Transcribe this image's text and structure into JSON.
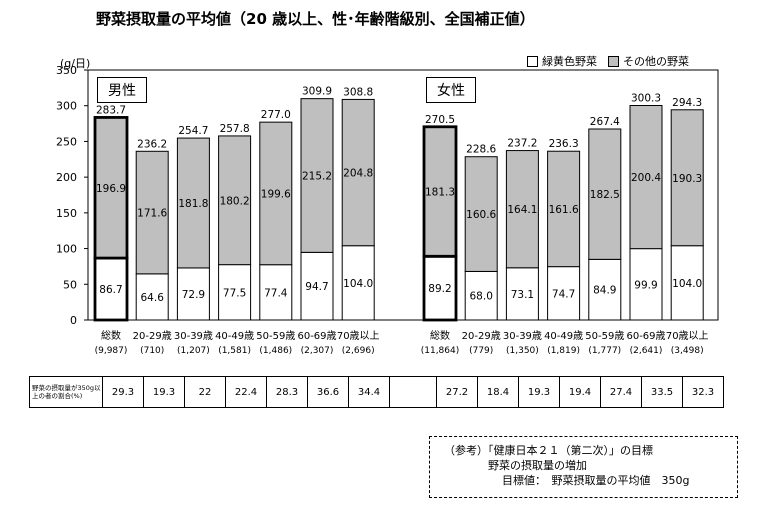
{
  "title": "野菜摂取量の平均値（20 歳以上、性･年齢階級別、全国補正値）",
  "unit": "(g/日)",
  "legend": {
    "green_yellow": "緑黄色野菜",
    "other": "その他の野菜"
  },
  "table_row_label": "野菜の摂取量が350g以上の者の割合(%)",
  "note": {
    "line1": "（参考）「健康日本２１（第二次）」の目標",
    "line2": "野菜の摂取量の増加",
    "line3": "目標値：　野菜摂取量の平均値　350g"
  },
  "colors": {
    "other": "#bfbfbf",
    "green_yellow": "#ffffff"
  },
  "chart_data": {
    "type": "bar",
    "stacked": true,
    "ylim": [
      0,
      350
    ],
    "yticks": [
      0,
      50,
      100,
      150,
      200,
      250,
      300,
      350
    ],
    "grid": false,
    "legend_position": "top-right",
    "groups": [
      {
        "name": "男性",
        "categories": [
          "総数",
          "20-29歳",
          "30-39歳",
          "40-49歳",
          "50-59歳",
          "60-69歳",
          "70歳以上"
        ],
        "n": [
          "(9,987)",
          "(710)",
          "(1,207)",
          "(1,581)",
          "(1,486)",
          "(2,307)",
          "(2,696)"
        ],
        "series": [
          {
            "name": "緑黄色野菜",
            "values": [
              86.7,
              64.6,
              72.9,
              77.5,
              77.4,
              94.7,
              104.0
            ]
          },
          {
            "name": "その他の野菜",
            "values": [
              196.9,
              171.6,
              181.8,
              180.2,
              199.6,
              215.2,
              204.8
            ]
          }
        ],
        "totals": [
          283.7,
          236.2,
          254.7,
          257.8,
          277.0,
          309.9,
          308.8
        ],
        "rate_350g": [
          29.3,
          19.3,
          22.0,
          22.4,
          28.3,
          36.6,
          34.4
        ]
      },
      {
        "name": "女性",
        "categories": [
          "総数",
          "20-29歳",
          "30-39歳",
          "40-49歳",
          "50-59歳",
          "60-69歳",
          "70歳以上"
        ],
        "n": [
          "(11,864)",
          "(779)",
          "(1,350)",
          "(1,819)",
          "(1,777)",
          "(2,641)",
          "(3,498)"
        ],
        "series": [
          {
            "name": "緑黄色野菜",
            "values": [
              89.2,
              68.0,
              73.1,
              74.7,
              84.9,
              99.9,
              104.0
            ]
          },
          {
            "name": "その他の野菜",
            "values": [
              181.3,
              160.6,
              164.1,
              161.6,
              182.5,
              200.4,
              190.3
            ]
          }
        ],
        "totals": [
          270.5,
          228.6,
          237.2,
          236.3,
          267.4,
          300.3,
          294.3
        ],
        "rate_350g": [
          27.2,
          18.4,
          19.3,
          19.4,
          27.4,
          33.5,
          32.3
        ]
      }
    ]
  }
}
